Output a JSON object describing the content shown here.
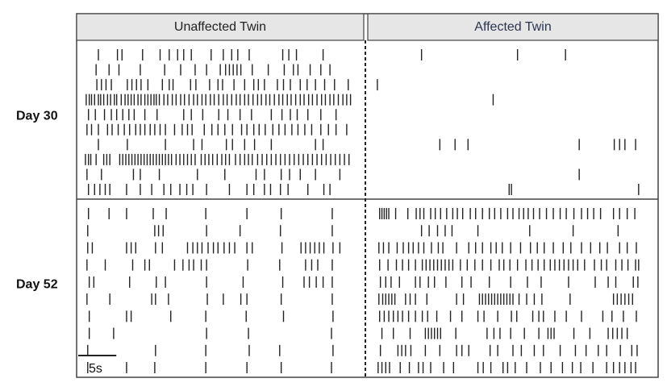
{
  "chart_data": {
    "type": "raster",
    "panels": [
      "Unaffected Twin",
      "Affected Twin"
    ],
    "xlim": [
      0,
      36
    ],
    "scale_bar": {
      "value": 5,
      "label": "5s"
    },
    "rows": [
      {
        "label": "Day 30",
        "trains": [
          [
            [
              1.8,
              4.3,
              4.9,
              7.6,
              9.9,
              11.1,
              12.2,
              13,
              14,
              16.6,
              18.2,
              19.3,
              20.1,
              21.6,
              26,
              26.8,
              27.8,
              31.3
            ],
            [
              1.5,
              3.2,
              4.5,
              7.3,
              10.5,
              12.6,
              14.5,
              16,
              17.8,
              18.5,
              19,
              19.5,
              20,
              20.5,
              22,
              24.1,
              26.2,
              27.4,
              28,
              29.6,
              31,
              32.2
            ],
            [
              1.6,
              2.2,
              2.8,
              3.5,
              5.6,
              6.2,
              6.8,
              7.4,
              8.3,
              10.2,
              11.1,
              11.6,
              13.9,
              14.6,
              16.4,
              17.5,
              18.1,
              19.6,
              21,
              22.2,
              22.8,
              23.6,
              25.3,
              26.1,
              27,
              28.3,
              29.2,
              30.3,
              31.5,
              32.8,
              34.6
            ],
            [
              0.2,
              0.6,
              0.9,
              1.3,
              1.8,
              2.1,
              2.5,
              3,
              3.4,
              3.9,
              4.2,
              4.8,
              5.3,
              5.7,
              6.1,
              6.5,
              7,
              7.4,
              7.9,
              8.3,
              8.7,
              9.1,
              9.4,
              9.8,
              10.4,
              10.9,
              11.5,
              12,
              12.6,
              13.1,
              13.7,
              14.3,
              14.8,
              15.4,
              15.9,
              16.5,
              17,
              17.6,
              18.2,
              18.7,
              19.3,
              19.9,
              20.4,
              21,
              21.5,
              22.1,
              22.7,
              23.2,
              23.8,
              24.3,
              24.9,
              25.5,
              26,
              26.6,
              27.1,
              27.7,
              28.3,
              28.8,
              29.4,
              29.9,
              30.5,
              31.1,
              31.6,
              32.2,
              32.7,
              33.3,
              33.9,
              34.4,
              34.9
            ],
            [
              0.5,
              1.4,
              2.6,
              3.5,
              4.2,
              5,
              5.8,
              6.5,
              7.9,
              9.5,
              13,
              14,
              15.5,
              17.6,
              18.8,
              20.4,
              21.9,
              24.5,
              25.9,
              27,
              27.9,
              29.3,
              31,
              33
            ],
            [
              0.3,
              0.9,
              1.8,
              3,
              3.6,
              4.4,
              5.2,
              5.9,
              6.7,
              7.3,
              7.9,
              8.6,
              9.2,
              9.9,
              10.6,
              11.8,
              12.8,
              13.5,
              14.1,
              15.7,
              16.7,
              17.5,
              18.4,
              19.4,
              20.6,
              21.3,
              22.2,
              22.9,
              23.7,
              24.7,
              25.5,
              26.3,
              27.2,
              28,
              28.9,
              29.8,
              31,
              32,
              33,
              34.4
            ],
            [
              1.8,
              5.6,
              10.6,
              14.3,
              15.4,
              18.6,
              19.4,
              21,
              22.3,
              24.5,
              30.3,
              31.3
            ],
            [
              0.1,
              0.5,
              0.8,
              1.5,
              2.5,
              2.9,
              3.3,
              4.6,
              5,
              5.4,
              5.8,
              6.2,
              6.6,
              7,
              7.4,
              7.8,
              8.2,
              8.6,
              9,
              9.4,
              9.8,
              10.2,
              10.6,
              11,
              11.4,
              12,
              12.5,
              13,
              13.5,
              14,
              14.5,
              15.3,
              15.8,
              16.3,
              16.8,
              17.4,
              18,
              18.5,
              19,
              19.8,
              20.4,
              21,
              21.5,
              22,
              22.7,
              23.3,
              23.9,
              24.5,
              25.1,
              25.7,
              26.3,
              26.9,
              27.5,
              28.1,
              28.7,
              29.3,
              29.9,
              30.5,
              31.1,
              31.7,
              32.3,
              32.9,
              33.5,
              34.1,
              34.7
            ],
            [
              0.3,
              2.2,
              6.4,
              7.3,
              9.8,
              14.8,
              18.4,
              22.5,
              23.6,
              25.8,
              26.9,
              28.3,
              30.3,
              33.5
            ],
            [
              0.5,
              1.3,
              2,
              2.7,
              3.3,
              5.5,
              7.3,
              8.8,
              10.4,
              11.3,
              12.5,
              13.4,
              14.2,
              16,
              19,
              21.3,
              22.2,
              23.6,
              24.4,
              25.7,
              26.7,
              29.3,
              31.4,
              32.2
            ]
          ],
          [
            [
              6,
              18.6,
              24.9
            ],
            [],
            [
              0.2
            ],
            [
              15.4
            ],
            [],
            [],
            [
              8.4,
              10.4,
              12.1,
              26.7,
              31.3,
              32,
              32.7,
              34.1
            ],
            [],
            [
              26.7
            ],
            [
              17.5,
              17.8,
              34.5
            ]
          ]
        ]
      },
      {
        "label": "Day 52",
        "trains": [
          [
            [
              0.5,
              3.2,
              5.5,
              9,
              10.7,
              15.9,
              21.3,
              25.8,
              32.5
            ],
            [
              0.4,
              9.2,
              9.7,
              10.3,
              16,
              20.4,
              25.7,
              32.5
            ],
            [
              0.4,
              1,
              5.5,
              6.1,
              6.7,
              9.3,
              10.2,
              13.5,
              14.2,
              14.8,
              15.4,
              16.2,
              16.9,
              17.5,
              18.3,
              19,
              19.7,
              21.3,
              22,
              25.9,
              28.4,
              29,
              29.6,
              30.2,
              30.8,
              31.4,
              32.6,
              33.5
            ],
            [
              0.3,
              2.7,
              6.3,
              7.9,
              8.5,
              11.8,
              12.9,
              13.7,
              14.3,
              15.3,
              16,
              21.4,
              25.6,
              29,
              29.8,
              30.6,
              32.5
            ],
            [
              0.6,
              1.2,
              5.9,
              9.4,
              10.6,
              16,
              20.8,
              26,
              28.8,
              29.5,
              30.4,
              31.3,
              32.5
            ],
            [
              0.3,
              3.3,
              8.8,
              9.3,
              11,
              16.1,
              18.2,
              20.5,
              21.3,
              25.8,
              32.5
            ],
            [
              0.6,
              5.5,
              6.1,
              11.3,
              15.9,
              21.2,
              26.1,
              32.6
            ],
            [
              0.6,
              3.8,
              16,
              21.5,
              32.4
            ],
            [
              0.4,
              9.3,
              15.9,
              21.6,
              25.6,
              32.6
            ],
            [
              0.4,
              5.5,
              9.2,
              15.9,
              21.3,
              25.8,
              32.4
            ]
          ],
          [
            [
              0.5,
              0.8,
              1.1,
              1.4,
              1.7,
              2.6,
              4.2,
              5.3,
              5.8,
              6.3,
              7.2,
              7.8,
              8.5,
              9.3,
              10.1,
              10.7,
              11.4,
              12.4,
              13.1,
              14,
              14.9,
              15.6,
              16.4,
              17.3,
              18,
              18.8,
              19.4,
              20,
              20.7,
              21.5,
              22.4,
              23.3,
              24.2,
              25,
              26,
              27,
              27.8,
              28.6,
              29.5,
              31.2,
              32,
              33,
              34
            ],
            [
              6,
              7,
              8.1,
              9.1,
              10,
              13.4,
              20.2,
              25.9,
              31.8
            ],
            [
              0.4,
              1,
              1.7,
              2.8,
              3.6,
              4.3,
              4.9,
              5.6,
              6.3,
              7.3,
              8.2,
              8.8,
              10.6,
              12.2,
              13.1,
              14,
              15.1,
              15.8,
              16.6,
              17.7,
              19,
              20.3,
              21.2,
              22.1,
              23.3,
              24.6,
              25.6,
              27,
              28.2,
              29.4,
              30.4,
              32,
              33,
              34.2
            ],
            [
              0.5,
              1.6,
              2.7,
              3.5,
              4.3,
              5.2,
              6.1,
              6.6,
              7.1,
              7.6,
              8.1,
              8.6,
              9.1,
              9.6,
              10.1,
              11.1,
              12,
              13,
              14,
              15.1,
              16.2,
              16.8,
              17.6,
              18.6,
              19.7,
              20.5,
              21.3,
              22.1,
              22.9,
              23.5,
              24.1,
              24.7,
              25.3,
              25.9,
              26.5,
              27.4,
              28.7,
              29.6,
              30.3,
              31.5,
              32.3,
              33.1,
              34.1,
              34.5
            ],
            [
              0.6,
              1.3,
              2,
              3.1,
              5.2,
              5.8,
              6.9,
              7.7,
              9.2,
              11.3,
              12.5,
              14.9,
              17.7,
              19.9,
              21.7,
              25.3,
              28.8,
              30.5,
              31.5,
              33.8,
              34.4
            ],
            [
              0.4,
              0.9,
              1.3,
              1.7,
              2.1,
              2.5,
              3.9,
              4.5,
              5.2,
              6.7,
              10.6,
              11.5,
              13.6,
              14,
              14.4,
              14.8,
              15.2,
              15.6,
              16,
              16.4,
              16.8,
              17.2,
              17.6,
              18,
              18.8,
              19.8,
              20.8,
              21.8,
              25.5,
              31.2,
              31.7,
              32.2,
              32.7,
              33.2,
              33.7
            ],
            [
              0.5,
              1.1,
              1.7,
              2.3,
              2.9,
              3.5,
              4.3,
              5.2,
              6.1,
              6.8,
              8,
              9.8,
              11.3,
              13.4,
              14.2,
              16,
              17.8,
              18.5,
              20.6,
              21.4,
              22,
              23.5,
              25,
              27,
              29.8,
              31,
              32.5,
              34.2
            ],
            [
              0.8,
              2.3,
              4.5,
              6.5,
              6.9,
              7.3,
              7.7,
              8.1,
              8.5,
              10.5,
              14.6,
              15.5,
              16.3,
              17.7,
              19.5,
              21.4,
              22.6,
              23,
              23.4,
              26,
              28.1,
              30.5,
              31.1,
              31.7,
              32.3,
              33
            ],
            [
              0.6,
              2.9,
              3.4,
              3.9,
              4.6,
              6.5,
              8.4,
              10.6,
              11.3,
              12.2,
              15,
              16,
              18,
              19.1,
              20.8,
              22,
              24.2,
              26.2,
              27.6,
              29.2,
              30.3,
              32.1,
              33.6,
              34.3
            ],
            [
              0.3,
              0.8,
              1.3,
              1.8,
              3.2,
              4.4,
              5.6,
              6.2,
              7.2,
              8.9,
              10.2,
              13.4,
              14.1,
              15.1,
              16.7,
              17.3,
              18.3,
              19.8,
              21.6,
              23,
              24.5,
              25.8,
              26.9,
              28.5,
              30.3,
              31.2,
              32,
              32.7,
              33.5,
              34.1
            ]
          ]
        ]
      }
    ]
  }
}
